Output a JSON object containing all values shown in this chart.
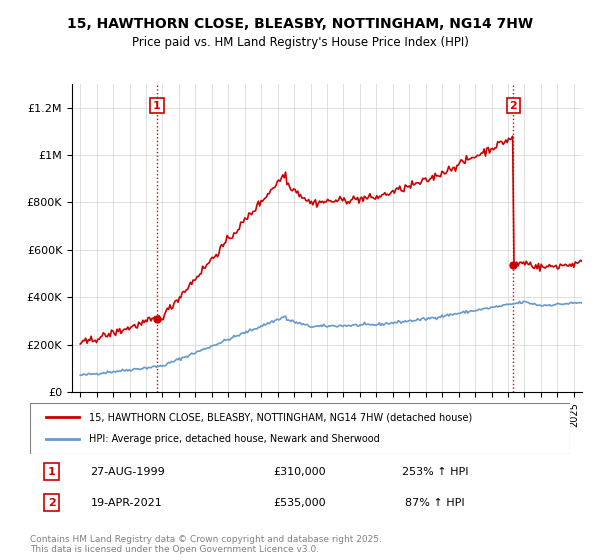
{
  "title": "15, HAWTHORN CLOSE, BLEASBY, NOTTINGHAM, NG14 7HW",
  "subtitle": "Price paid vs. HM Land Registry's House Price Index (HPI)",
  "ylim": [
    0,
    1300000
  ],
  "yticks": [
    0,
    200000,
    400000,
    600000,
    800000,
    1000000,
    1200000
  ],
  "ytick_labels": [
    "£0",
    "£200K",
    "£400K",
    "£600K",
    "£800K",
    "£1M",
    "£1.2M"
  ],
  "sale1_date": "27-AUG-1999",
  "sale1_price": 310000,
  "sale1_label": "253% ↑ HPI",
  "sale2_date": "19-APR-2021",
  "sale2_price": 535000,
  "sale2_label": "87% ↑ HPI",
  "red_color": "#cc0000",
  "blue_color": "#6699cc",
  "legend_line1": "15, HAWTHORN CLOSE, BLEASBY, NOTTINGHAM, NG14 7HW (detached house)",
  "legend_line2": "HPI: Average price, detached house, Newark and Sherwood",
  "footnote": "Contains HM Land Registry data © Crown copyright and database right 2025.\nThis data is licensed under the Open Government Licence v3.0.",
  "x_start_year": 1995,
  "x_end_year": 2025
}
